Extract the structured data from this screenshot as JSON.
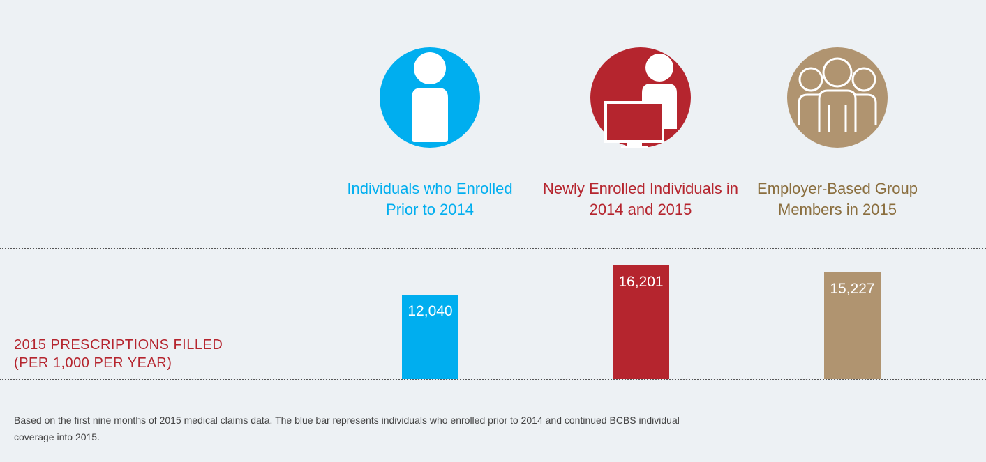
{
  "chart_data": {
    "type": "bar",
    "categories": [
      "Individuals who Enrolled Prior to 2014",
      "Newly Enrolled Individuals in 2014 and 2015",
      "Employer-Based Group Members in 2015"
    ],
    "values": [
      12040,
      16201,
      15227
    ],
    "value_labels": [
      "12,040",
      "16,201",
      "15,227"
    ],
    "colors": [
      "#00aeef",
      "#b5252e",
      "#b09470"
    ],
    "y_label": "2015 PRESCRIPTIONS FILLED (PER 1,000 PER YEAR)",
    "note": "Based on the first nine months of 2015 medical claims data. The blue bar represents individuals who enrolled prior to 2014 and continued BCBS individual coverage into 2015."
  }
}
